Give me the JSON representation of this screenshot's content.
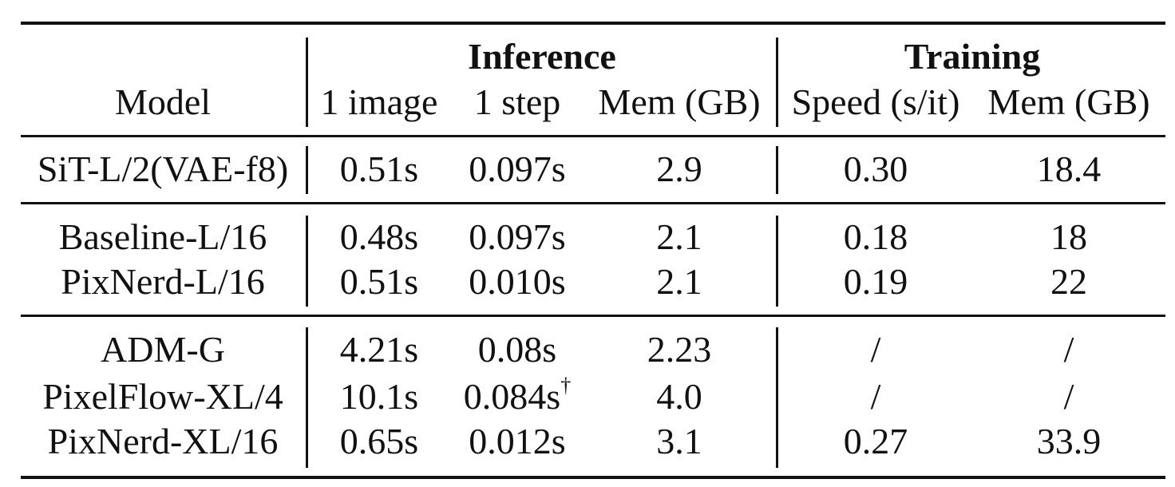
{
  "table": {
    "group_headers": {
      "inference": "Inference",
      "training": "Training"
    },
    "columns": [
      "Model",
      "1 image",
      "1 step",
      "Mem (GB)",
      "Speed (s/it)",
      "Mem (GB)"
    ],
    "rows": [
      [
        "SiT-L/2(VAE-f8)",
        "0.51s",
        "0.097s",
        "2.9",
        "0.30",
        "18.4"
      ],
      [
        "Baseline-L/16",
        "0.48s",
        "0.097s",
        "2.1",
        "0.18",
        "18"
      ],
      [
        "PixNerd-L/16",
        "0.51s",
        "0.010s",
        "2.1",
        "0.19",
        "22"
      ],
      [
        "ADM-G",
        "4.21s",
        "0.08s",
        "2.23",
        "/",
        "/"
      ],
      [
        "PixelFlow-XL/4",
        "10.1s",
        "0.084s",
        "4.0",
        "/",
        "/"
      ],
      [
        "PixNerd-XL/16",
        "0.65s",
        "0.012s",
        "3.1",
        "0.27",
        "33.9"
      ]
    ],
    "footnote_mark": "†"
  }
}
